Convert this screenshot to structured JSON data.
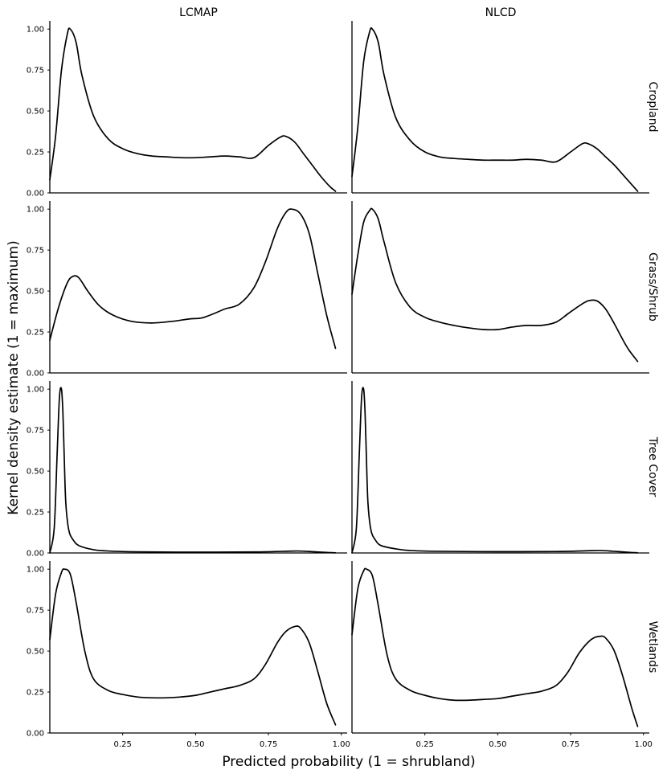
{
  "chart_data": {
    "type": "line",
    "layout": "facet-grid",
    "columns": [
      "LCMAP",
      "NLCD"
    ],
    "rows": [
      "Cropland",
      "Grass/Shrub",
      "Tree Cover",
      "Wetlands"
    ],
    "xlabel": "Predicted probability (1 = shrubland)",
    "ylabel": "Kernel density estimate (1 = maximum)",
    "xlim": [
      0.0,
      1.02
    ],
    "ylim": [
      0.0,
      1.05
    ],
    "xticks": [
      0.25,
      0.5,
      0.75,
      1.0
    ],
    "xtick_labels": [
      "0.25",
      "0.50",
      "0.75",
      "1.00"
    ],
    "yticks": [
      0.0,
      0.25,
      0.5,
      0.75,
      1.0
    ],
    "ytick_labels": [
      "0.00",
      "0.25",
      "0.50",
      "0.75",
      "1.00"
    ],
    "line_color": "#000000",
    "grid": false,
    "panels": [
      {
        "column": "LCMAP",
        "row": "Cropland",
        "x": [
          0.0,
          0.02,
          0.04,
          0.06,
          0.07,
          0.09,
          0.11,
          0.15,
          0.2,
          0.25,
          0.3,
          0.35,
          0.4,
          0.45,
          0.5,
          0.55,
          0.6,
          0.65,
          0.7,
          0.75,
          0.79,
          0.81,
          0.84,
          0.87,
          0.9,
          0.93,
          0.96,
          0.98
        ],
        "y": [
          0.08,
          0.35,
          0.75,
          0.97,
          1.0,
          0.92,
          0.72,
          0.47,
          0.33,
          0.27,
          0.24,
          0.225,
          0.22,
          0.215,
          0.215,
          0.22,
          0.225,
          0.22,
          0.215,
          0.29,
          0.34,
          0.345,
          0.31,
          0.24,
          0.17,
          0.1,
          0.04,
          0.01
        ]
      },
      {
        "column": "NLCD",
        "row": "Cropland",
        "x": [
          0.0,
          0.02,
          0.04,
          0.06,
          0.07,
          0.09,
          0.11,
          0.15,
          0.2,
          0.25,
          0.3,
          0.35,
          0.4,
          0.45,
          0.5,
          0.55,
          0.6,
          0.65,
          0.7,
          0.75,
          0.79,
          0.81,
          0.84,
          0.87,
          0.9,
          0.93,
          0.96,
          0.98
        ],
        "y": [
          0.1,
          0.4,
          0.8,
          0.98,
          1.0,
          0.92,
          0.72,
          0.46,
          0.32,
          0.25,
          0.22,
          0.21,
          0.205,
          0.2,
          0.2,
          0.2,
          0.205,
          0.2,
          0.19,
          0.25,
          0.3,
          0.3,
          0.27,
          0.22,
          0.17,
          0.11,
          0.05,
          0.01
        ]
      },
      {
        "column": "LCMAP",
        "row": "Grass/Shrub",
        "x": [
          0.0,
          0.03,
          0.06,
          0.08,
          0.1,
          0.13,
          0.17,
          0.22,
          0.28,
          0.35,
          0.42,
          0.48,
          0.52,
          0.56,
          0.6,
          0.65,
          0.7,
          0.74,
          0.78,
          0.81,
          0.83,
          0.86,
          0.89,
          0.92,
          0.95,
          0.98
        ],
        "y": [
          0.2,
          0.4,
          0.55,
          0.59,
          0.58,
          0.5,
          0.41,
          0.35,
          0.315,
          0.305,
          0.315,
          0.33,
          0.335,
          0.36,
          0.39,
          0.42,
          0.52,
          0.68,
          0.88,
          0.98,
          1.0,
          0.97,
          0.85,
          0.6,
          0.35,
          0.15
        ]
      },
      {
        "column": "NLCD",
        "row": "Grass/Shrub",
        "x": [
          0.0,
          0.02,
          0.04,
          0.06,
          0.07,
          0.09,
          0.11,
          0.15,
          0.2,
          0.25,
          0.3,
          0.35,
          0.4,
          0.45,
          0.5,
          0.55,
          0.6,
          0.65,
          0.7,
          0.74,
          0.78,
          0.81,
          0.84,
          0.87,
          0.9,
          0.93,
          0.95,
          0.98
        ],
        "y": [
          0.48,
          0.72,
          0.92,
          0.99,
          1.0,
          0.94,
          0.8,
          0.55,
          0.4,
          0.34,
          0.31,
          0.29,
          0.275,
          0.265,
          0.265,
          0.28,
          0.29,
          0.29,
          0.31,
          0.36,
          0.41,
          0.44,
          0.44,
          0.39,
          0.3,
          0.2,
          0.14,
          0.07
        ]
      },
      {
        "column": "LCMAP",
        "row": "Tree Cover",
        "x": [
          0.0,
          0.015,
          0.025,
          0.033,
          0.04,
          0.045,
          0.05,
          0.055,
          0.065,
          0.08,
          0.1,
          0.15,
          0.2,
          0.3,
          0.5,
          0.7,
          0.8,
          0.85,
          0.9,
          0.95,
          0.98
        ],
        "y": [
          0.0,
          0.15,
          0.6,
          0.95,
          1.0,
          0.85,
          0.55,
          0.3,
          0.14,
          0.08,
          0.045,
          0.02,
          0.012,
          0.007,
          0.005,
          0.006,
          0.01,
          0.012,
          0.008,
          0.003,
          0.001
        ]
      },
      {
        "column": "NLCD",
        "row": "Tree Cover",
        "x": [
          0.0,
          0.015,
          0.025,
          0.033,
          0.04,
          0.045,
          0.05,
          0.055,
          0.065,
          0.08,
          0.1,
          0.15,
          0.2,
          0.3,
          0.5,
          0.7,
          0.8,
          0.85,
          0.9,
          0.95,
          0.98
        ],
        "y": [
          0.0,
          0.15,
          0.6,
          0.95,
          1.0,
          0.85,
          0.55,
          0.3,
          0.14,
          0.08,
          0.045,
          0.025,
          0.015,
          0.01,
          0.008,
          0.009,
          0.013,
          0.015,
          0.01,
          0.004,
          0.001
        ]
      },
      {
        "column": "LCMAP",
        "row": "Wetlands",
        "x": [
          0.0,
          0.02,
          0.04,
          0.05,
          0.07,
          0.09,
          0.12,
          0.15,
          0.2,
          0.25,
          0.3,
          0.35,
          0.4,
          0.45,
          0.5,
          0.55,
          0.6,
          0.65,
          0.7,
          0.74,
          0.78,
          0.81,
          0.84,
          0.86,
          0.89,
          0.92,
          0.95,
          0.98
        ],
        "y": [
          0.57,
          0.85,
          0.98,
          1.0,
          0.97,
          0.8,
          0.5,
          0.33,
          0.26,
          0.235,
          0.22,
          0.215,
          0.215,
          0.22,
          0.23,
          0.25,
          0.27,
          0.29,
          0.33,
          0.42,
          0.55,
          0.62,
          0.65,
          0.64,
          0.55,
          0.37,
          0.18,
          0.05
        ]
      },
      {
        "column": "NLCD",
        "row": "Wetlands",
        "x": [
          0.0,
          0.02,
          0.04,
          0.05,
          0.07,
          0.09,
          0.12,
          0.15,
          0.2,
          0.25,
          0.3,
          0.35,
          0.4,
          0.45,
          0.5,
          0.55,
          0.6,
          0.65,
          0.7,
          0.74,
          0.78,
          0.82,
          0.85,
          0.87,
          0.9,
          0.93,
          0.96,
          0.98
        ],
        "y": [
          0.6,
          0.88,
          0.99,
          1.0,
          0.96,
          0.78,
          0.48,
          0.33,
          0.26,
          0.23,
          0.21,
          0.2,
          0.2,
          0.205,
          0.21,
          0.225,
          0.24,
          0.255,
          0.29,
          0.37,
          0.49,
          0.57,
          0.59,
          0.58,
          0.5,
          0.34,
          0.15,
          0.04
        ]
      }
    ]
  }
}
